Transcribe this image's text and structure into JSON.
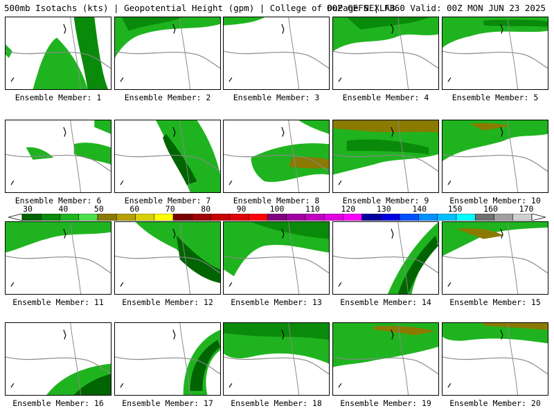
{
  "header": {
    "title": "500mb Isotachs (kts) | Geopotential Height (gpm) | College of DuPage NEXLAB",
    "run": "00Z GEFS | F360 Valid: 00Z MON JUN 23 2025"
  },
  "colorbar": {
    "labels": [
      "30",
      "40",
      "50",
      "60",
      "70",
      "80",
      "90",
      "100",
      "110",
      "120",
      "130",
      "140",
      "150",
      "160",
      "170"
    ],
    "colors": [
      "#006400",
      "#0a8a0a",
      "#1fb41f",
      "#4ee04e",
      "#8b7a00",
      "#b8a000",
      "#d8d000",
      "#ffff00",
      "#7a0000",
      "#a00000",
      "#c80000",
      "#e00000",
      "#ff0000",
      "#800080",
      "#a000a0",
      "#c000c0",
      "#e000e0",
      "#ff00ff",
      "#0000a0",
      "#0000e0",
      "#0050ff",
      "#0090ff",
      "#00c0ff",
      "#00ffff",
      "#707070",
      "#a0a0a0",
      "#d0d0d0"
    ]
  },
  "members": [
    {
      "label": "Ensemble Member: 1"
    },
    {
      "label": "Ensemble Member: 2"
    },
    {
      "label": "Ensemble Member: 3"
    },
    {
      "label": "Ensemble Member: 4"
    },
    {
      "label": "Ensemble Member: 5"
    },
    {
      "label": "Ensemble Member: 6"
    },
    {
      "label": "Ensemble Member: 7"
    },
    {
      "label": "Ensemble Member: 8"
    },
    {
      "label": "Ensemble Member: 9"
    },
    {
      "label": "Ensemble Member: 10"
    },
    {
      "label": "Ensemble Member: 11"
    },
    {
      "label": "Ensemble Member: 12"
    },
    {
      "label": "Ensemble Member: 13"
    },
    {
      "label": "Ensemble Member: 14"
    },
    {
      "label": "Ensemble Member: 15"
    },
    {
      "label": "Ensemble Member: 16"
    },
    {
      "label": "Ensemble Member: 17"
    },
    {
      "label": "Ensemble Member: 18"
    },
    {
      "label": "Ensemble Member: 19"
    },
    {
      "label": "Ensemble Member: 20"
    }
  ]
}
